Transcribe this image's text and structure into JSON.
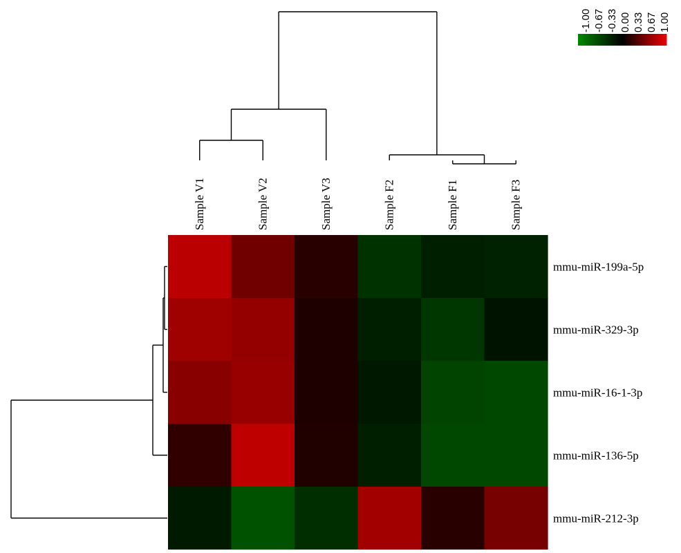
{
  "chart_data": {
    "type": "heatmap",
    "title": "",
    "columns": [
      "Sample V1",
      "Sample V2",
      "Sample V3",
      "Sample F2",
      "Sample F1",
      "Sample F3"
    ],
    "rows": [
      "mmu-miR-199a-5p",
      "mmu-miR-329-3p",
      "mmu-miR-16-1-3p",
      "mmu-miR-136-5p",
      "mmu-miR-212-3p"
    ],
    "values": [
      [
        0.78,
        0.47,
        0.17,
        -0.37,
        -0.22,
        -0.25
      ],
      [
        0.67,
        0.62,
        0.13,
        -0.22,
        -0.4,
        -0.14
      ],
      [
        0.57,
        0.64,
        0.13,
        -0.17,
        -0.5,
        -0.53
      ],
      [
        0.2,
        0.8,
        0.14,
        -0.22,
        -0.52,
        -0.52
      ],
      [
        -0.19,
        -0.6,
        -0.34,
        0.68,
        0.17,
        0.5
      ]
    ],
    "color_scale": {
      "min": -1.0,
      "max": 1.0,
      "low_color": "#008800",
      "mid_color": "#000000",
      "high_color": "#ee0000"
    },
    "legend": {
      "position": "top-right",
      "ticks": [
        "-1.00",
        "-0.67",
        "-0.33",
        "0.00",
        "0.33",
        "0.67",
        "1.00"
      ]
    },
    "column_dendrogram": true,
    "row_dendrogram": true
  }
}
